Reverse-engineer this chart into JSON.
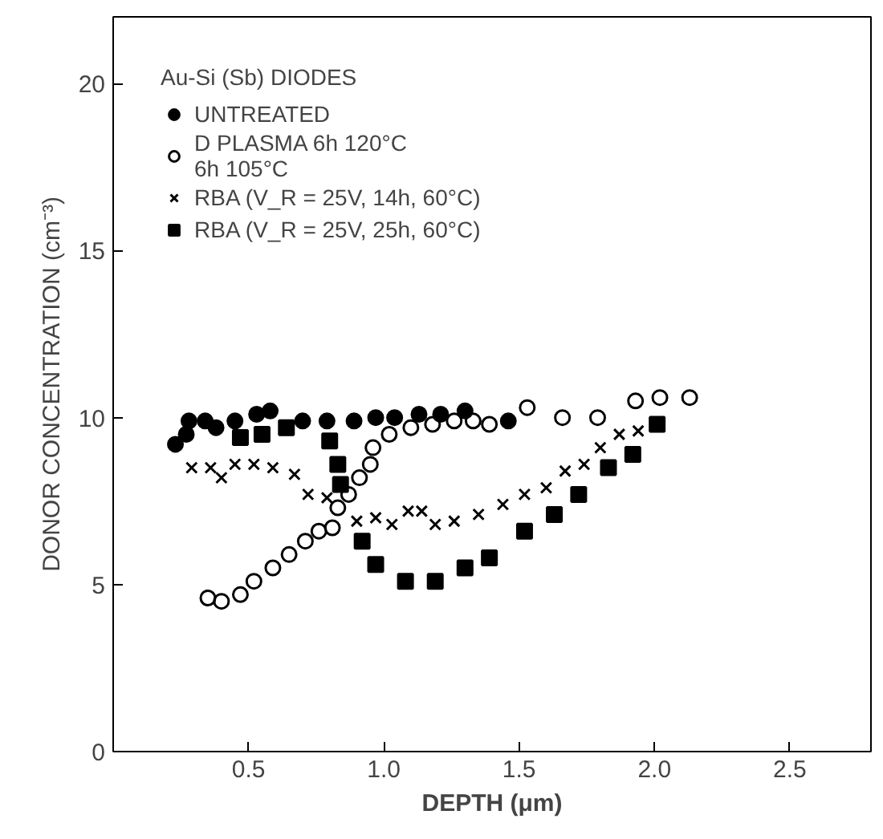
{
  "chart_data": {
    "type": "scatter",
    "xlabel": "DEPTH (μm)",
    "ylabel": "DONOR CONCENTRATION (cm⁻³)",
    "legend_title": "Au-Si (Sb) DIODES",
    "legend": "top left",
    "grid": false,
    "xlim": [
      0,
      2.8
    ],
    "ylim": [
      0,
      22
    ],
    "xticks": [
      0.5,
      {
        "value": 1,
        "label": "1.0"
      },
      1.5,
      {
        "value": 2,
        "label": "2.0"
      },
      2.5
    ],
    "yticks": [
      0,
      5,
      10,
      15,
      20
    ],
    "series": [
      {
        "name": "UNTREATED",
        "color": "#000000",
        "marker": "circle",
        "x": [
          0.23,
          0.27,
          0.28,
          0.34,
          0.38,
          0.45,
          0.53,
          0.58,
          0.7,
          0.79,
          0.89,
          0.97,
          1.04,
          1.13,
          1.21,
          1.3,
          1.46
        ],
        "values": [
          9.2,
          9.5,
          9.9,
          9.9,
          9.7,
          9.9,
          10.1,
          10.2,
          9.9,
          9.9,
          9.9,
          10.0,
          10.0,
          10.1,
          10.1,
          10.2,
          9.9
        ]
      },
      {
        "name": "D PLASMA 6h 120°C\n6h 105°C",
        "color": "#000000",
        "marker": "circle_open",
        "x": [
          0.35,
          0.4,
          0.47,
          0.52,
          0.59,
          0.65,
          0.71,
          0.76,
          0.81,
          0.83,
          0.87,
          0.91,
          0.95,
          0.96,
          1.02,
          1.1,
          1.18,
          1.26,
          1.33,
          1.39,
          1.53,
          1.66,
          1.79,
          1.93,
          2.02,
          2.13
        ],
        "values": [
          4.6,
          4.5,
          4.7,
          5.1,
          5.5,
          5.9,
          6.3,
          6.6,
          6.7,
          7.3,
          7.7,
          8.2,
          8.6,
          9.1,
          9.5,
          9.7,
          9.8,
          9.9,
          9.9,
          9.8,
          10.3,
          10.0,
          10.0,
          10.5,
          10.6,
          10.6
        ]
      },
      {
        "name": "RBA (V_R = 25V, 14h, 60°C)",
        "color": "#000000",
        "marker": "cross",
        "x": [
          0.29,
          0.36,
          0.4,
          0.45,
          0.52,
          0.59,
          0.67,
          0.72,
          0.79,
          0.9,
          0.97,
          1.03,
          1.09,
          1.14,
          1.19,
          1.26,
          1.35,
          1.44,
          1.52,
          1.6,
          1.67,
          1.74,
          1.8,
          1.87,
          1.94
        ],
        "values": [
          8.5,
          8.5,
          8.2,
          8.6,
          8.6,
          8.5,
          8.3,
          7.7,
          7.6,
          6.9,
          7.0,
          6.8,
          7.2,
          7.2,
          6.8,
          6.9,
          7.1,
          7.4,
          7.7,
          7.9,
          8.4,
          8.6,
          9.1,
          9.5,
          9.6
        ]
      },
      {
        "name": "RBA (V_R = 25V, 25h, 60°C)",
        "color": "#000000",
        "marker": "square",
        "x": [
          0.47,
          0.55,
          0.64,
          0.8,
          0.83,
          0.84,
          0.92,
          0.97,
          1.08,
          1.19,
          1.3,
          1.39,
          1.52,
          1.63,
          1.72,
          1.83,
          1.92,
          2.01
        ],
        "values": [
          9.4,
          9.5,
          9.7,
          9.3,
          8.6,
          8.0,
          6.3,
          5.6,
          5.1,
          5.1,
          5.5,
          5.8,
          6.6,
          7.1,
          7.7,
          8.5,
          8.9,
          9.8
        ]
      }
    ]
  }
}
